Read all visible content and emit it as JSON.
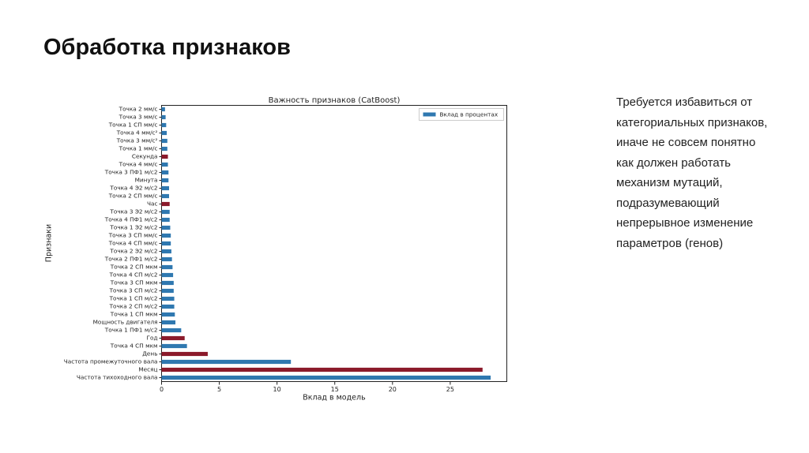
{
  "title": "Обработка признаков",
  "text": "Требуется избавиться от категориальных признаков, иначе не совсем понятно как должен работать механизм мутаций, подразумевающий непрерывное изменение параметров (генов)",
  "chart_data": {
    "type": "barh",
    "title": "Важность признаков (CatBoost)",
    "x_label": "Вклад в модель",
    "y_label": "Признаки",
    "categories": [
      "Точка 2 мм/с",
      "Точка 3 мм/с",
      "Точка 1 СП мм/с",
      "Точка 4 мм/с²",
      "Точка 3 мм/с²",
      "Точка 1 мм/с",
      "Секунда",
      "Точка 4 мм/с",
      "Точка 3 ПФ1 м/с2",
      "Минута",
      "Точка 4 Э2 м/с2",
      "Точка 2 СП мм/с",
      "Час",
      "Точка 3 Э2 м/с2",
      "Точка 4 ПФ1 м/с2",
      "Точка 1 Э2 м/с2",
      "Точка 3 СП мм/с",
      "Точка 4 СП мм/с",
      "Точка 2 Э2 м/с2",
      "Точка 2 ПФ1 м/с2",
      "Точка 2 СП мкм",
      "Точка 4 СП м/с2",
      "Точка 3 СП мкм",
      "Точка 3 СП м/с2",
      "Точка 1 СП м/с2",
      "Точка 2 СП м/с2",
      "Точка 1 СП мкм",
      "Мощность двигателя",
      "Точка 1 ПФ1 м/с2",
      "Год",
      "Точка 4 СП мкм",
      "День",
      "Частота промежуточного вала",
      "Месяц",
      "Частота тихоходного вала"
    ],
    "values": [
      0.3,
      0.35,
      0.4,
      0.45,
      0.5,
      0.5,
      0.55,
      0.55,
      0.6,
      0.6,
      0.65,
      0.65,
      0.7,
      0.7,
      0.7,
      0.75,
      0.8,
      0.8,
      0.85,
      0.9,
      0.95,
      1.0,
      1.05,
      1.05,
      1.1,
      1.1,
      1.15,
      1.2,
      1.7,
      2.0,
      2.2,
      4.0,
      11.2,
      27.8,
      28.5
    ],
    "series_name": "Вклад в процентах",
    "color": "#2f78b0",
    "colors": [
      "#2f78b0",
      "#2f78b0",
      "#2f78b0",
      "#2f78b0",
      "#2f78b0",
      "#2f78b0",
      "#8b1a2b",
      "#2f78b0",
      "#2f78b0",
      "#2f78b0",
      "#2f78b0",
      "#2f78b0",
      "#8b1a2b",
      "#2f78b0",
      "#2f78b0",
      "#2f78b0",
      "#2f78b0",
      "#2f78b0",
      "#2f78b0",
      "#2f78b0",
      "#2f78b0",
      "#2f78b0",
      "#2f78b0",
      "#2f78b0",
      "#2f78b0",
      "#2f78b0",
      "#2f78b0",
      "#2f78b0",
      "#2f78b0",
      "#8b1a2b",
      "#2f78b0",
      "#8b1a2b",
      "#2f78b0",
      "#8b1a2b",
      "#2f78b0"
    ],
    "xlim": [
      0,
      29.9
    ],
    "xticks": [
      0,
      5,
      10,
      15,
      20,
      25
    ],
    "legend": "upper right"
  }
}
